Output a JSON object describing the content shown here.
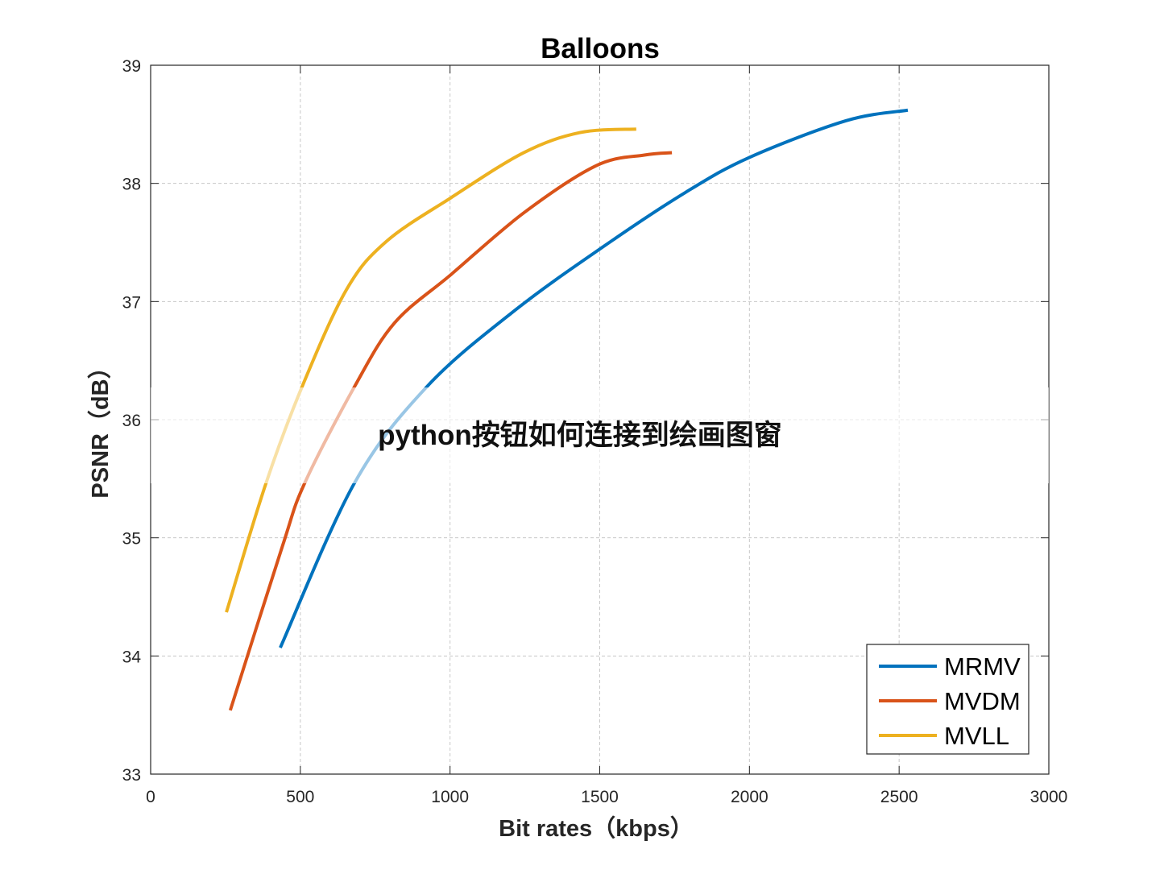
{
  "overlay_text": "python按钮如何连接到绘画图窗",
  "chart_data": {
    "type": "line",
    "title": "Balloons",
    "xlabel": "Bit rates（kbps）",
    "ylabel": "PSNR（dB）",
    "xlim": [
      0,
      3000
    ],
    "ylim": [
      33,
      39
    ],
    "xticks": [
      0,
      500,
      1000,
      1500,
      2000,
      2500,
      3000
    ],
    "yticks": [
      33,
      34,
      35,
      36,
      37,
      38,
      39
    ],
    "grid": true,
    "legend_position": "bottom-right",
    "series": [
      {
        "name": "MRMV",
        "color": "#0072BD",
        "x": [
          433,
          680,
          923,
          1219,
          1515,
          1784,
          2000,
          2322,
          2529
        ],
        "y": [
          34.07,
          35.46,
          36.28,
          36.93,
          37.47,
          37.92,
          38.22,
          38.53,
          38.62
        ]
      },
      {
        "name": "MVDM",
        "color": "#D95319",
        "x": [
          266,
          439,
          514,
          681,
          815,
          1004,
          1246,
          1488,
          1649,
          1741
        ],
        "y": [
          33.54,
          34.92,
          35.46,
          36.28,
          36.82,
          37.23,
          37.75,
          38.15,
          38.24,
          38.26
        ]
      },
      {
        "name": "MVLL",
        "color": "#EDB120",
        "x": [
          253,
          385,
          506,
          654,
          788,
          1004,
          1246,
          1434,
          1622
        ],
        "y": [
          34.37,
          35.46,
          36.28,
          37.1,
          37.51,
          37.88,
          38.26,
          38.43,
          38.46
        ]
      }
    ]
  }
}
